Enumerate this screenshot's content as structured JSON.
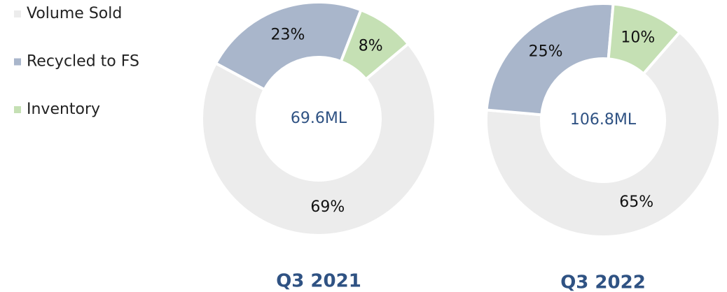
{
  "legend": {
    "labels": [
      "Volume Sold",
      "Recycled to FS",
      "Inventory"
    ],
    "colors": [
      "#ececec",
      "#a9b6cb",
      "#c5e0b4"
    ]
  },
  "chart_data": [
    {
      "type": "donut",
      "title": "Q3 2021",
      "center_label": "69.6ML",
      "values": [
        69,
        23,
        8
      ],
      "value_labels": [
        "69%",
        "23%",
        "8%"
      ]
    },
    {
      "type": "donut",
      "title": "Q3 2022",
      "center_label": "106.8ML",
      "values": [
        65,
        25,
        10
      ],
      "value_labels": [
        "65%",
        "25%",
        "10%"
      ]
    }
  ]
}
